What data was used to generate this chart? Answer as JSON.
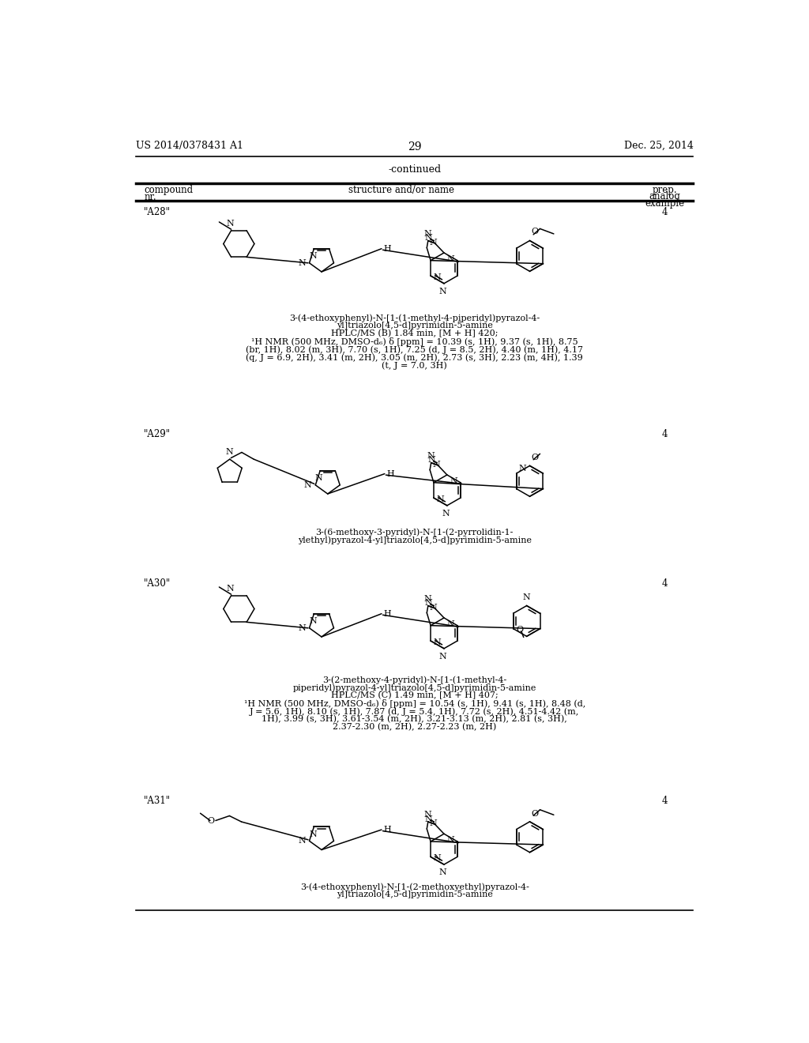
{
  "background_color": "#ffffff",
  "page_number": "29",
  "header_left": "US 2014/0378431 A1",
  "header_right": "Dec. 25, 2014",
  "continued_text": "-continued",
  "compounds": [
    {
      "id": "\"A28\"",
      "example": "4",
      "name_lines": [
        "3-(4-ethoxyphenyl)-N-[1-(1-methyl-4-piperidyl)pyrazol-4-",
        "yl]triazolo[4,5-d]pyrimidin-5-amine",
        "HPLC/MS (B) 1.84 min, [M + H] 420;",
        "¹H NMR (500 MHz, DMSO-d₆) δ [ppm] = 10.39 (s, 1H), 9.37 (s, 1H), 8.75",
        "(br, 1H), 8.02 (m, 3H), 7.70 (s, 1H), 7.25 (d, J = 8.5, 2H), 4.40 (m, 1H), 4.17",
        "(q, J = 6.9, 2H), 3.41 (m, 2H), 3.05 (m, 2H), 2.73 (s, 3H), 2.23 (m, 4H), 1.39",
        "(t, J = 7.0, 3H)"
      ]
    },
    {
      "id": "\"A29\"",
      "example": "4",
      "name_lines": [
        "3-(6-methoxy-3-pyridyl)-N-[1-(2-pyrrolidin-1-",
        "ylethyl)pyrazol-4-yl]triazolo[4,5-d]pyrimidin-5-amine"
      ]
    },
    {
      "id": "\"A30\"",
      "example": "4",
      "name_lines": [
        "3-(2-methoxy-4-pyridyl)-N-[1-(1-methyl-4-",
        "piperidyl)pyrazol-4-yl]triazolo[4,5-d]pyrimidin-5-amine",
        "HPLC/MS (C) 1.49 min, [M + H] 407;",
        "¹H NMR (500 MHz, DMSO-d₆) δ [ppm] = 10.54 (s, 1H), 9.41 (s, 1H), 8.48 (d,",
        "J = 5.6, 1H), 8.10 (s, 1H), 7.87 (d, J = 5.4, 1H), 7.72 (s, 2H), 4.51-4.42 (m,",
        "1H), 3.99 (s, 3H), 3.61-3.54 (m, 2H), 3.21-3.13 (m, 2H), 2.81 (s, 3H),",
        "2.37-2.30 (m, 2H), 2.27-2.23 (m, 2H)"
      ]
    },
    {
      "id": "\"A31\"",
      "example": "4",
      "name_lines": [
        "3-(4-ethoxyphenyl)-N-[1-(2-methoxyethyl)pyrazol-4-",
        "yl]triazolo[4,5-d]pyrimidin-5-amine"
      ]
    }
  ],
  "font_size_header": 9,
  "font_size_body": 8.5
}
